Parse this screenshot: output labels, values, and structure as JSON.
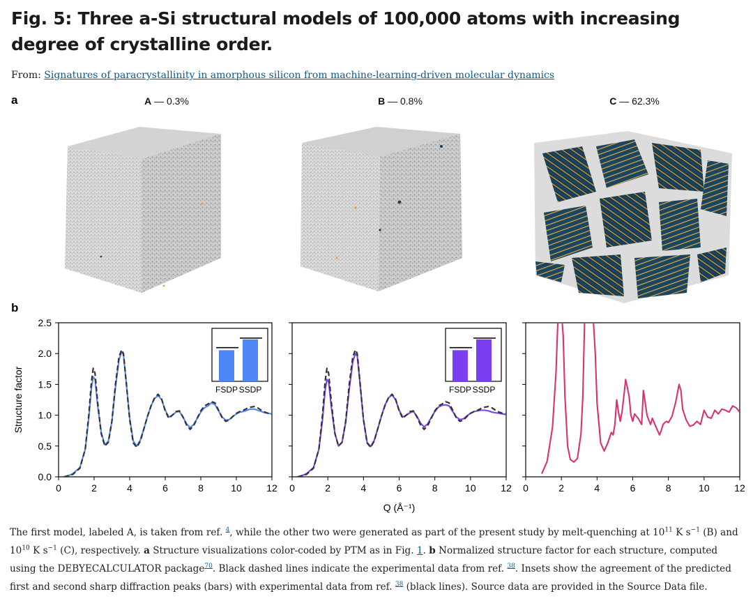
{
  "figure": {
    "title": "Fig. 5: Three a-Si structural models of 100,000 atoms with increasing degree of crystalline order.",
    "from_label": "From:",
    "from_link": "Signatures of paracrystallinity in amorphous silicon from machine-learning-driven molecular dynamics"
  },
  "panel_a": {
    "letter": "a",
    "models": [
      {
        "id": "A",
        "sep": " — ",
        "value": "0.3%"
      },
      {
        "id": "B",
        "sep": " — ",
        "value": "0.8%"
      },
      {
        "id": "C",
        "sep": " — ",
        "value": "62.3%"
      }
    ]
  },
  "panel_b": {
    "letter": "b"
  },
  "colors": {
    "blue": "#4f86f7",
    "purple": "#7b3ff2",
    "pink": "#d6336f",
    "dashed": "#333333",
    "atom_gray": "#b9b9b9",
    "atom_navy": "#163b54",
    "atom_orange": "#e8a02b"
  },
  "chart_data": [
    {
      "type": "line",
      "model": "A",
      "xlabel": "",
      "ylabel": "Structure factor",
      "xlim": [
        0,
        12
      ],
      "ylim": [
        0,
        2.5
      ],
      "xticks": [
        0,
        2,
        4,
        6,
        8,
        10,
        12
      ],
      "yticks": [
        "0.0",
        "0.5",
        "1.0",
        "1.5",
        "2.0",
        "2.5"
      ],
      "series": [
        {
          "style": "solid",
          "color": "#4f86f7",
          "x": [
            0.4,
            0.8,
            1.2,
            1.5,
            1.7,
            1.85,
            1.95,
            2.05,
            2.2,
            2.4,
            2.6,
            2.8,
            3.0,
            3.2,
            3.4,
            3.55,
            3.65,
            3.8,
            4.0,
            4.2,
            4.4,
            4.6,
            4.8,
            5.0,
            5.2,
            5.4,
            5.6,
            5.8,
            6.0,
            6.2,
            6.4,
            6.6,
            6.8,
            7.0,
            7.2,
            7.4,
            7.6,
            7.8,
            8.0,
            8.2,
            8.4,
            8.6,
            8.8,
            9.0,
            9.2,
            9.4,
            9.6,
            9.8,
            10.0,
            10.2,
            10.4,
            10.6,
            10.8,
            11.0,
            11.2,
            11.4,
            11.6,
            11.8,
            12.0
          ],
          "y": [
            0.0,
            0.05,
            0.15,
            0.45,
            0.95,
            1.45,
            1.62,
            1.58,
            1.15,
            0.72,
            0.52,
            0.58,
            0.9,
            1.45,
            1.9,
            2.03,
            1.98,
            1.55,
            0.95,
            0.58,
            0.5,
            0.6,
            0.78,
            0.98,
            1.15,
            1.27,
            1.32,
            1.25,
            1.08,
            0.97,
            1.0,
            1.05,
            1.06,
            0.97,
            0.86,
            0.8,
            0.85,
            0.95,
            1.05,
            1.12,
            1.15,
            1.2,
            1.17,
            1.07,
            0.97,
            0.92,
            0.93,
            0.98,
            1.02,
            1.05,
            1.06,
            1.08,
            1.1,
            1.1,
            1.08,
            1.06,
            1.04,
            1.03,
            1.02
          ]
        },
        {
          "style": "dashed",
          "color": "#333333",
          "x": [
            0.3,
            0.8,
            1.2,
            1.5,
            1.7,
            1.85,
            1.95,
            2.05,
            2.2,
            2.4,
            2.6,
            2.8,
            3.0,
            3.2,
            3.4,
            3.55,
            3.65,
            3.8,
            4.0,
            4.2,
            4.4,
            4.6,
            4.8,
            5.0,
            5.2,
            5.4,
            5.6,
            5.8,
            6.0,
            6.2,
            6.4,
            6.6,
            6.8,
            7.0,
            7.2,
            7.4,
            7.6,
            7.8,
            8.0,
            8.2,
            8.4,
            8.6,
            8.8,
            9.0,
            9.2,
            9.4,
            9.6,
            9.8,
            10.0,
            10.2,
            10.4,
            10.6,
            10.8,
            11.0,
            11.2,
            11.4,
            11.6,
            11.8,
            12.0
          ],
          "y": [
            0.0,
            0.04,
            0.14,
            0.45,
            1.0,
            1.55,
            1.76,
            1.68,
            1.2,
            0.7,
            0.5,
            0.56,
            0.9,
            1.5,
            1.95,
            2.06,
            2.0,
            1.55,
            0.93,
            0.55,
            0.48,
            0.58,
            0.78,
            0.98,
            1.15,
            1.28,
            1.34,
            1.26,
            1.07,
            0.95,
            1.0,
            1.06,
            1.07,
            0.97,
            0.84,
            0.77,
            0.83,
            0.95,
            1.07,
            1.15,
            1.18,
            1.22,
            1.2,
            1.08,
            0.96,
            0.9,
            0.92,
            0.98,
            1.03,
            1.06,
            1.08,
            1.11,
            1.13,
            1.14,
            1.12,
            1.08,
            1.05,
            1.03,
            1.02
          ]
        }
      ],
      "inset": {
        "type": "bar",
        "categories": [
          "FSDP",
          "SSDP"
        ],
        "values": [
          0.72,
          0.97
        ],
        "experimental": [
          0.78,
          1.0
        ]
      }
    },
    {
      "type": "line",
      "model": "B",
      "xlabel": "Q (Å⁻¹)",
      "ylabel": "",
      "xlim": [
        0,
        12
      ],
      "ylim": [
        0,
        2.5
      ],
      "xticks": [
        0,
        2,
        4,
        6,
        8,
        10,
        12
      ],
      "series": [
        {
          "style": "solid",
          "color": "#7b3ff2",
          "x": [
            0.4,
            0.8,
            1.2,
            1.5,
            1.7,
            1.85,
            1.95,
            2.05,
            2.2,
            2.4,
            2.6,
            2.8,
            3.0,
            3.2,
            3.4,
            3.55,
            3.65,
            3.8,
            4.0,
            4.2,
            4.4,
            4.6,
            4.8,
            5.0,
            5.2,
            5.4,
            5.6,
            5.8,
            6.0,
            6.2,
            6.4,
            6.6,
            6.8,
            7.0,
            7.2,
            7.4,
            7.6,
            7.8,
            8.0,
            8.2,
            8.4,
            8.6,
            8.8,
            9.0,
            9.2,
            9.4,
            9.6,
            9.8,
            10.0,
            10.2,
            10.4,
            10.6,
            10.8,
            11.0,
            11.2,
            11.4,
            11.6,
            11.8,
            12.0
          ],
          "y": [
            0.0,
            0.05,
            0.15,
            0.45,
            0.92,
            1.4,
            1.58,
            1.54,
            1.12,
            0.7,
            0.5,
            0.56,
            0.88,
            1.42,
            1.87,
            2.0,
            1.96,
            1.53,
            0.93,
            0.56,
            0.49,
            0.59,
            0.78,
            0.98,
            1.16,
            1.28,
            1.33,
            1.25,
            1.08,
            0.97,
            1.0,
            1.04,
            1.06,
            0.98,
            0.87,
            0.81,
            0.86,
            0.96,
            1.06,
            1.13,
            1.16,
            1.17,
            1.15,
            1.06,
            0.97,
            0.93,
            0.94,
            0.99,
            1.03,
            1.06,
            1.07,
            1.08,
            1.08,
            1.07,
            1.05,
            1.04,
            1.03,
            1.02,
            1.01
          ]
        },
        {
          "style": "dashed",
          "color": "#333333",
          "x": [
            0.3,
            0.8,
            1.2,
            1.5,
            1.7,
            1.85,
            1.95,
            2.05,
            2.2,
            2.4,
            2.6,
            2.8,
            3.0,
            3.2,
            3.4,
            3.55,
            3.65,
            3.8,
            4.0,
            4.2,
            4.4,
            4.6,
            4.8,
            5.0,
            5.2,
            5.4,
            5.6,
            5.8,
            6.0,
            6.2,
            6.4,
            6.6,
            6.8,
            7.0,
            7.2,
            7.4,
            7.6,
            7.8,
            8.0,
            8.2,
            8.4,
            8.6,
            8.8,
            9.0,
            9.2,
            9.4,
            9.6,
            9.8,
            10.0,
            10.2,
            10.4,
            10.6,
            10.8,
            11.0,
            11.2,
            11.4,
            11.6,
            11.8,
            12.0
          ],
          "y": [
            0.0,
            0.04,
            0.14,
            0.45,
            1.0,
            1.55,
            1.76,
            1.68,
            1.2,
            0.7,
            0.5,
            0.56,
            0.9,
            1.5,
            1.95,
            2.06,
            2.0,
            1.55,
            0.93,
            0.55,
            0.48,
            0.58,
            0.78,
            0.98,
            1.15,
            1.28,
            1.34,
            1.26,
            1.07,
            0.95,
            1.0,
            1.06,
            1.07,
            0.97,
            0.84,
            0.77,
            0.83,
            0.95,
            1.07,
            1.15,
            1.18,
            1.22,
            1.2,
            1.08,
            0.96,
            0.9,
            0.92,
            0.98,
            1.03,
            1.06,
            1.08,
            1.11,
            1.13,
            1.14,
            1.12,
            1.08,
            1.05,
            1.03,
            1.02
          ]
        }
      ],
      "inset": {
        "type": "bar",
        "categories": [
          "FSDP",
          "SSDP"
        ],
        "values": [
          0.72,
          0.97
        ],
        "experimental": [
          0.78,
          1.0
        ]
      }
    },
    {
      "type": "line",
      "model": "C",
      "xlabel": "",
      "ylabel": "",
      "xlim": [
        0,
        12
      ],
      "ylim": [
        0,
        2.5
      ],
      "xticks": [
        0,
        2,
        4,
        6,
        8,
        10,
        12
      ],
      "series": [
        {
          "style": "solid",
          "color": "#d6336f",
          "x": [
            0.9,
            1.2,
            1.5,
            1.7,
            1.8,
            1.9,
            1.95,
            2.0,
            2.05,
            2.1,
            2.2,
            2.35,
            2.5,
            2.7,
            2.9,
            3.1,
            3.2,
            3.3,
            3.4,
            3.5,
            3.6,
            3.7,
            3.8,
            3.9,
            4.0,
            4.2,
            4.4,
            4.6,
            4.8,
            4.9,
            5.0,
            5.1,
            5.2,
            5.3,
            5.4,
            5.5,
            5.6,
            5.7,
            5.8,
            5.9,
            6.0,
            6.1,
            6.3,
            6.5,
            6.6,
            6.7,
            6.8,
            6.9,
            7.0,
            7.1,
            7.2,
            7.35,
            7.5,
            7.6,
            7.7,
            7.8,
            7.9,
            8.0,
            8.2,
            8.4,
            8.6,
            8.7,
            8.8,
            9.0,
            9.2,
            9.4,
            9.6,
            9.8,
            10.0,
            10.2,
            10.4,
            10.6,
            10.8,
            11.0,
            11.2,
            11.4,
            11.6,
            11.8,
            12.0
          ],
          "y": [
            0.05,
            0.25,
            0.8,
            1.7,
            2.5,
            2.5,
            2.5,
            2.5,
            2.5,
            2.3,
            1.3,
            0.5,
            0.28,
            0.24,
            0.3,
            0.7,
            1.3,
            2.5,
            2.5,
            2.5,
            2.5,
            2.5,
            2.5,
            2.0,
            1.2,
            0.55,
            0.42,
            0.55,
            0.72,
            0.68,
            0.85,
            1.25,
            1.05,
            0.9,
            1.05,
            1.3,
            1.58,
            1.45,
            1.3,
            1.0,
            0.9,
            1.02,
            0.95,
            0.85,
            1.4,
            1.2,
            1.0,
            0.92,
            0.85,
            0.95,
            0.88,
            0.78,
            0.68,
            0.75,
            0.85,
            0.88,
            0.9,
            0.88,
            0.98,
            1.2,
            1.5,
            1.4,
            1.1,
            0.92,
            0.82,
            0.84,
            0.9,
            0.85,
            1.08,
            0.97,
            0.95,
            1.08,
            1.02,
            1.1,
            1.08,
            1.05,
            1.15,
            1.12,
            1.05
          ]
        }
      ]
    }
  ],
  "caption": {
    "p1": "The first model, labeled A, is taken from ref. ",
    "ref1": "4",
    "p2": ", while the other two were generated as part of the present study by melt-quenching at 10",
    "exp1": "11",
    "p3": " K s",
    "exp2": "−1",
    "p4": " (B) and 10",
    "exp3": "10",
    "p5": " K s",
    "exp4": "−1",
    "p6": " (C), respectively. ",
    "bold_a": "a",
    "p7": " Structure visualizations color-coded by PTM as in Fig. ",
    "fig1": "1",
    "p8": ". ",
    "bold_b": "b",
    "p9": " Normalized structure factor for each structure, computed using the DEBYECALCULATOR package",
    "ref70": "70",
    "p10": ". Black dashed lines indicate the experimental data from ref. ",
    "ref38a": "38",
    "p11": ". Insets show the agreement of the predicted first and second sharp diffraction peaks (bars) with experimental data from ref. ",
    "ref38b": "38",
    "p12": " (black lines). Source data are provided in the Source Data file."
  }
}
